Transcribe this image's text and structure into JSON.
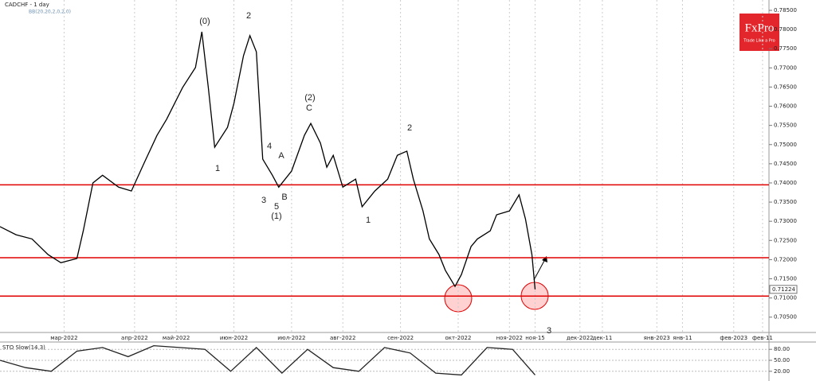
{
  "brand": {
    "name": "FxPro",
    "tagline": "Trade Like a Pro"
  },
  "chart_data": [
    {
      "type": "line",
      "title": "CADCHF - 1 day",
      "subtitle": "BB(20,20,2,0,2,0)",
      "color": "#000000",
      "x": [
        0,
        5,
        10,
        15,
        19,
        24,
        26,
        29,
        32,
        37,
        41,
        45,
        49,
        52,
        57,
        61,
        63,
        65,
        67,
        71,
        73,
        76,
        78,
        80,
        82,
        85,
        87,
        91,
        95,
        97,
        100,
        102,
        104,
        107,
        111,
        113,
        117,
        121,
        124,
        127,
        129,
        132,
        134,
        137,
        139,
        142,
        144,
        147,
        149,
        153,
        155,
        159,
        162,
        164,
        166,
        167
      ],
      "values": [
        0.7286,
        0.7265,
        0.7254,
        0.7213,
        0.7192,
        0.7203,
        0.7275,
        0.74,
        0.742,
        0.7389,
        0.7379,
        0.7452,
        0.7524,
        0.7566,
        0.7649,
        0.7701,
        0.7794,
        0.7649,
        0.7493,
        0.7545,
        0.7607,
        0.7732,
        0.7784,
        0.7742,
        0.7462,
        0.742,
        0.7389,
        0.7431,
        0.7524,
        0.7555,
        0.7504,
        0.7441,
        0.7472,
        0.7389,
        0.741,
        0.7338,
        0.7379,
        0.741,
        0.7472,
        0.7483,
        0.741,
        0.7327,
        0.7254,
        0.7213,
        0.7172,
        0.713,
        0.7161,
        0.7234,
        0.7254,
        0.7275,
        0.7317,
        0.7327,
        0.7369,
        0.7306,
        0.7213,
        0.71224
      ],
      "last_price": 0.71224,
      "xlim": [
        0,
        240
      ],
      "xticks": [
        {
          "value": 20,
          "label": "мар-2022"
        },
        {
          "value": 42,
          "label": "апр-2022"
        },
        {
          "value": 55,
          "label": "май-2022"
        },
        {
          "value": 73,
          "label": "июн-2022"
        },
        {
          "value": 91,
          "label": "июл-2022"
        },
        {
          "value": 107,
          "label": "авг-2022"
        },
        {
          "value": 125,
          "label": "сен-2022"
        },
        {
          "value": 143,
          "label": "окт-2022"
        },
        {
          "value": 159,
          "label": "ноя-2022"
        },
        {
          "value": 167,
          "label": "ноя-15"
        },
        {
          "value": 181,
          "label": "дек-2022"
        },
        {
          "value": 188,
          "label": "дек-11"
        },
        {
          "value": 205,
          "label": "янв-2023"
        },
        {
          "value": 213,
          "label": "янв-11"
        },
        {
          "value": 229,
          "label": "фев-2023"
        },
        {
          "value": 238,
          "label": "фев-11"
        }
      ],
      "ylim": [
        0.701,
        0.7877
      ],
      "yticks": [
        {
          "value": 0.705,
          "label": "0.70500"
        },
        {
          "value": 0.71,
          "label": "0.71000"
        },
        {
          "value": 0.715,
          "label": "0.71500"
        },
        {
          "value": 0.72,
          "label": "0.72000"
        },
        {
          "value": 0.725,
          "label": "0.72500"
        },
        {
          "value": 0.73,
          "label": "0.73000"
        },
        {
          "value": 0.735,
          "label": "0.73500"
        },
        {
          "value": 0.74,
          "label": "0.74000"
        },
        {
          "value": 0.745,
          "label": "0.74500"
        },
        {
          "value": 0.75,
          "label": "0.75000"
        },
        {
          "value": 0.755,
          "label": "0.75500"
        },
        {
          "value": 0.76,
          "label": "0.76000"
        },
        {
          "value": 0.765,
          "label": "0.76500"
        },
        {
          "value": 0.77,
          "label": "0.77000"
        },
        {
          "value": 0.775,
          "label": "0.77500"
        },
        {
          "value": 0.78,
          "label": "0.78000"
        },
        {
          "value": 0.785,
          "label": "0.78500"
        }
      ],
      "levels": [
        0.7395,
        0.7205,
        0.7105
      ],
      "level_color": "#e00000",
      "grid": true,
      "annotations": [
        "(0)",
        "2",
        "1",
        "3",
        "4",
        "5",
        "(1)",
        "A",
        "B",
        "C",
        "(2)",
        "2",
        "1",
        "3"
      ]
    },
    {
      "type": "line",
      "title": "STO Slow(14,3)",
      "color": "#222222",
      "x": [
        0,
        8,
        16,
        24,
        32,
        40,
        48,
        56,
        64,
        72,
        80,
        88,
        96,
        104,
        112,
        120,
        128,
        136,
        144,
        152,
        160,
        167
      ],
      "values": [
        50,
        30,
        20,
        75,
        85,
        60,
        90,
        85,
        80,
        20,
        85,
        15,
        80,
        30,
        20,
        85,
        70,
        15,
        10,
        85,
        80,
        10
      ],
      "xlim": [
        0,
        240
      ],
      "ylim": [
        0,
        100
      ],
      "yticks": [
        {
          "value": 20,
          "label": "20.00"
        },
        {
          "value": 50,
          "label": "50.00"
        },
        {
          "value": 80,
          "label": "80.00"
        }
      ]
    }
  ]
}
